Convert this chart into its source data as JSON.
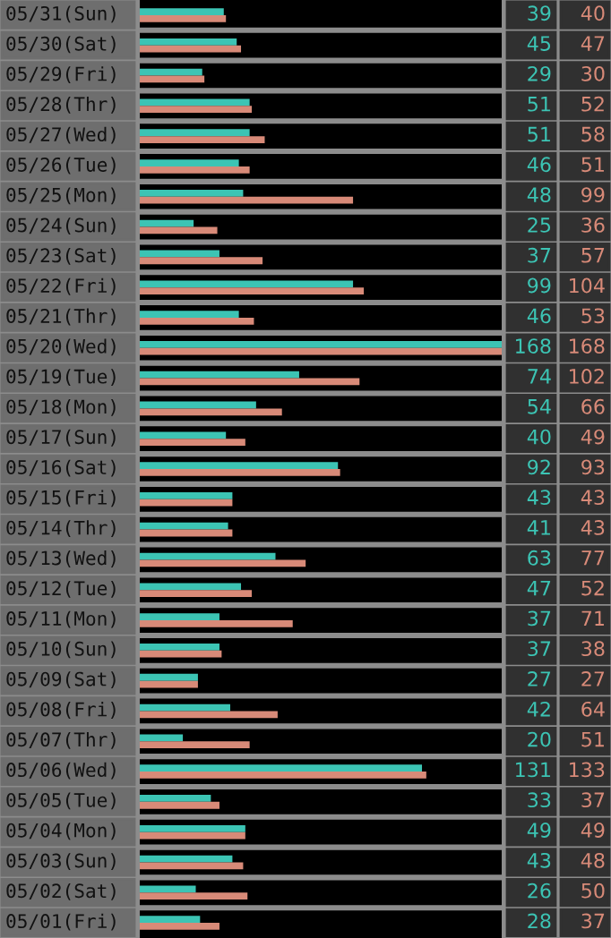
{
  "chart_data": {
    "type": "bar",
    "orientation": "horizontal",
    "categories": [
      "05/31(Sun)",
      "05/30(Sat)",
      "05/29(Fri)",
      "05/28(Thr)",
      "05/27(Wed)",
      "05/26(Tue)",
      "05/25(Mon)",
      "05/24(Sun)",
      "05/23(Sat)",
      "05/22(Fri)",
      "05/21(Thr)",
      "05/20(Wed)",
      "05/19(Tue)",
      "05/18(Mon)",
      "05/17(Sun)",
      "05/16(Sat)",
      "05/15(Fri)",
      "05/14(Thr)",
      "05/13(Wed)",
      "05/12(Tue)",
      "05/11(Mon)",
      "05/10(Sun)",
      "05/09(Sat)",
      "05/08(Fri)",
      "05/07(Thr)",
      "05/06(Wed)",
      "05/05(Tue)",
      "05/04(Mon)",
      "05/03(Sun)",
      "05/02(Sat)",
      "05/01(Fri)"
    ],
    "series": [
      {
        "color": "#3cc4b4",
        "values": [
          39,
          45,
          29,
          51,
          51,
          46,
          48,
          25,
          37,
          99,
          46,
          168,
          74,
          54,
          40,
          92,
          43,
          41,
          63,
          47,
          37,
          37,
          27,
          42,
          20,
          131,
          33,
          49,
          43,
          26,
          28
        ]
      },
      {
        "color": "#d88a78",
        "values": [
          40,
          47,
          30,
          52,
          58,
          51,
          99,
          36,
          57,
          104,
          53,
          168,
          102,
          66,
          49,
          93,
          43,
          43,
          77,
          52,
          71,
          38,
          27,
          64,
          51,
          133,
          37,
          49,
          48,
          50,
          37
        ]
      }
    ],
    "xlim": [
      0,
      168
    ],
    "data_labels": true
  }
}
